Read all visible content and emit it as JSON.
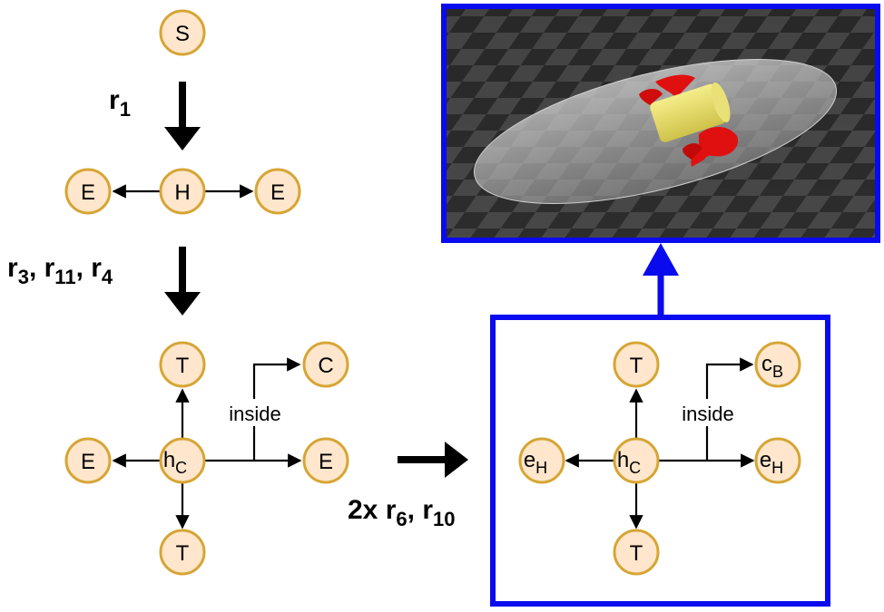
{
  "step1": {
    "start": "S",
    "rule": {
      "base": "r",
      "sub": "1"
    },
    "center": "H",
    "left": "E",
    "right": "E"
  },
  "step2": {
    "rules": [
      {
        "base": "r",
        "sub": "3"
      },
      {
        "base": "r",
        "sub": "11"
      },
      {
        "base": "r",
        "sub": "4"
      }
    ],
    "center": {
      "base": "h",
      "sub": "C"
    },
    "top": "T",
    "bottom": "T",
    "left": "E",
    "right": "E",
    "inside_target": "C",
    "inside_label": "inside"
  },
  "step3": {
    "rule_prefix": "2x",
    "rules": [
      {
        "base": "r",
        "sub": "6"
      },
      {
        "base": "r",
        "sub": "10"
      }
    ],
    "center": {
      "base": "h",
      "sub": "C"
    },
    "top": "T",
    "bottom": "T",
    "left": {
      "base": "e",
      "sub": "H"
    },
    "right": {
      "base": "e",
      "sub": "H"
    },
    "inside_target": {
      "base": "c",
      "sub": "B"
    },
    "inside_label": "inside"
  },
  "colors": {
    "node_fill": "#ffe6cc",
    "node_stroke": "#d6a534",
    "highlight": "#0a0aef"
  }
}
